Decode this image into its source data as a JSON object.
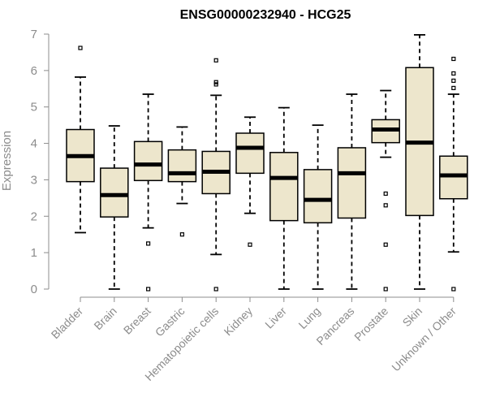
{
  "chart_data": {
    "type": "boxplot",
    "title": "ENSG00000232940 - HCG25",
    "xlabel": "",
    "ylabel": "Expression",
    "ylim": [
      0,
      7
    ],
    "yticks": [
      "0",
      "1",
      "2",
      "3",
      "4",
      "5",
      "6",
      "7"
    ],
    "grid": false,
    "colors": {
      "box_fill": "#ede6cc",
      "stroke": "#000000",
      "axis": "#8c8c8c"
    },
    "categories": [
      "Bladder",
      "Brain",
      "Breast",
      "Gastric",
      "Hematopoietic cells",
      "Kidney",
      "Liver",
      "Lung",
      "Pancreas",
      "Prostate",
      "Skin",
      "Unknown / Other"
    ],
    "boxes": [
      {
        "min": 1.55,
        "q1": 2.95,
        "median": 3.65,
        "q3": 4.38,
        "max": 5.82,
        "outliers": [
          6.62
        ]
      },
      {
        "min": 0.0,
        "q1": 1.98,
        "median": 2.58,
        "q3": 3.32,
        "max": 4.48,
        "outliers": []
      },
      {
        "min": 1.68,
        "q1": 2.98,
        "median": 3.42,
        "q3": 4.05,
        "max": 5.35,
        "outliers": [
          1.25,
          0.0
        ]
      },
      {
        "min": 2.35,
        "q1": 2.95,
        "median": 3.18,
        "q3": 3.82,
        "max": 4.45,
        "outliers": [
          1.5
        ]
      },
      {
        "min": 0.95,
        "q1": 2.62,
        "median": 3.22,
        "q3": 3.78,
        "max": 5.32,
        "outliers": [
          6.28,
          5.68,
          5.62,
          0.0
        ]
      },
      {
        "min": 2.08,
        "q1": 3.18,
        "median": 3.88,
        "q3": 4.28,
        "max": 4.72,
        "outliers": [
          1.22
        ]
      },
      {
        "min": 0.0,
        "q1": 1.88,
        "median": 3.05,
        "q3": 3.75,
        "max": 4.98,
        "outliers": []
      },
      {
        "min": 0.0,
        "q1": 1.82,
        "median": 2.45,
        "q3": 3.28,
        "max": 4.5,
        "outliers": []
      },
      {
        "min": 0.0,
        "q1": 1.95,
        "median": 3.18,
        "q3": 3.88,
        "max": 5.35,
        "outliers": []
      },
      {
        "min": 3.62,
        "q1": 4.02,
        "median": 4.38,
        "q3": 4.65,
        "max": 5.45,
        "outliers": [
          2.62,
          2.3,
          1.22,
          0.0
        ]
      },
      {
        "min": 0.0,
        "q1": 2.02,
        "median": 4.02,
        "q3": 6.08,
        "max": 6.98,
        "outliers": []
      },
      {
        "min": 1.02,
        "q1": 2.48,
        "median": 3.12,
        "q3": 3.65,
        "max": 5.35,
        "outliers": [
          6.32,
          5.92,
          5.72,
          5.52,
          0.0
        ]
      }
    ]
  }
}
